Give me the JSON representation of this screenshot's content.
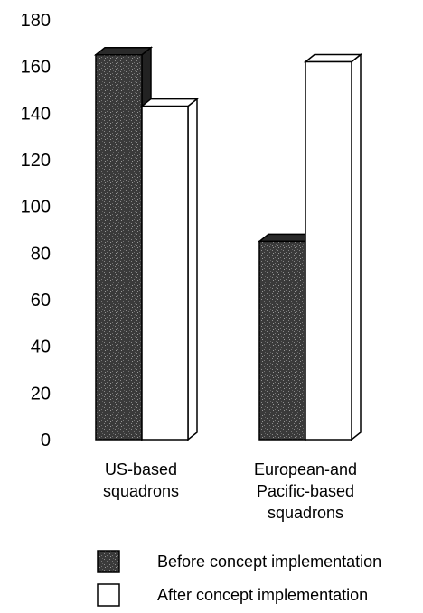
{
  "title_fragment": "",
  "chart_data": {
    "type": "bar",
    "categories": [
      [
        "US-based",
        "squadrons"
      ],
      [
        "European-and",
        "Pacific-based",
        "squadrons"
      ]
    ],
    "series": [
      {
        "name": "Before concept implementation",
        "values": [
          165,
          85
        ],
        "color": "#3a3a3a",
        "pattern": "speckled-dark"
      },
      {
        "name": "After concept implementation",
        "values": [
          143,
          162
        ],
        "color": "#ffffff",
        "pattern": "none"
      }
    ],
    "ylim": [
      0,
      180
    ],
    "yticks": [
      0,
      20,
      40,
      60,
      80,
      100,
      120,
      140,
      160,
      180
    ],
    "grid": false,
    "style": "3d-bars",
    "legend_position": "bottom"
  }
}
